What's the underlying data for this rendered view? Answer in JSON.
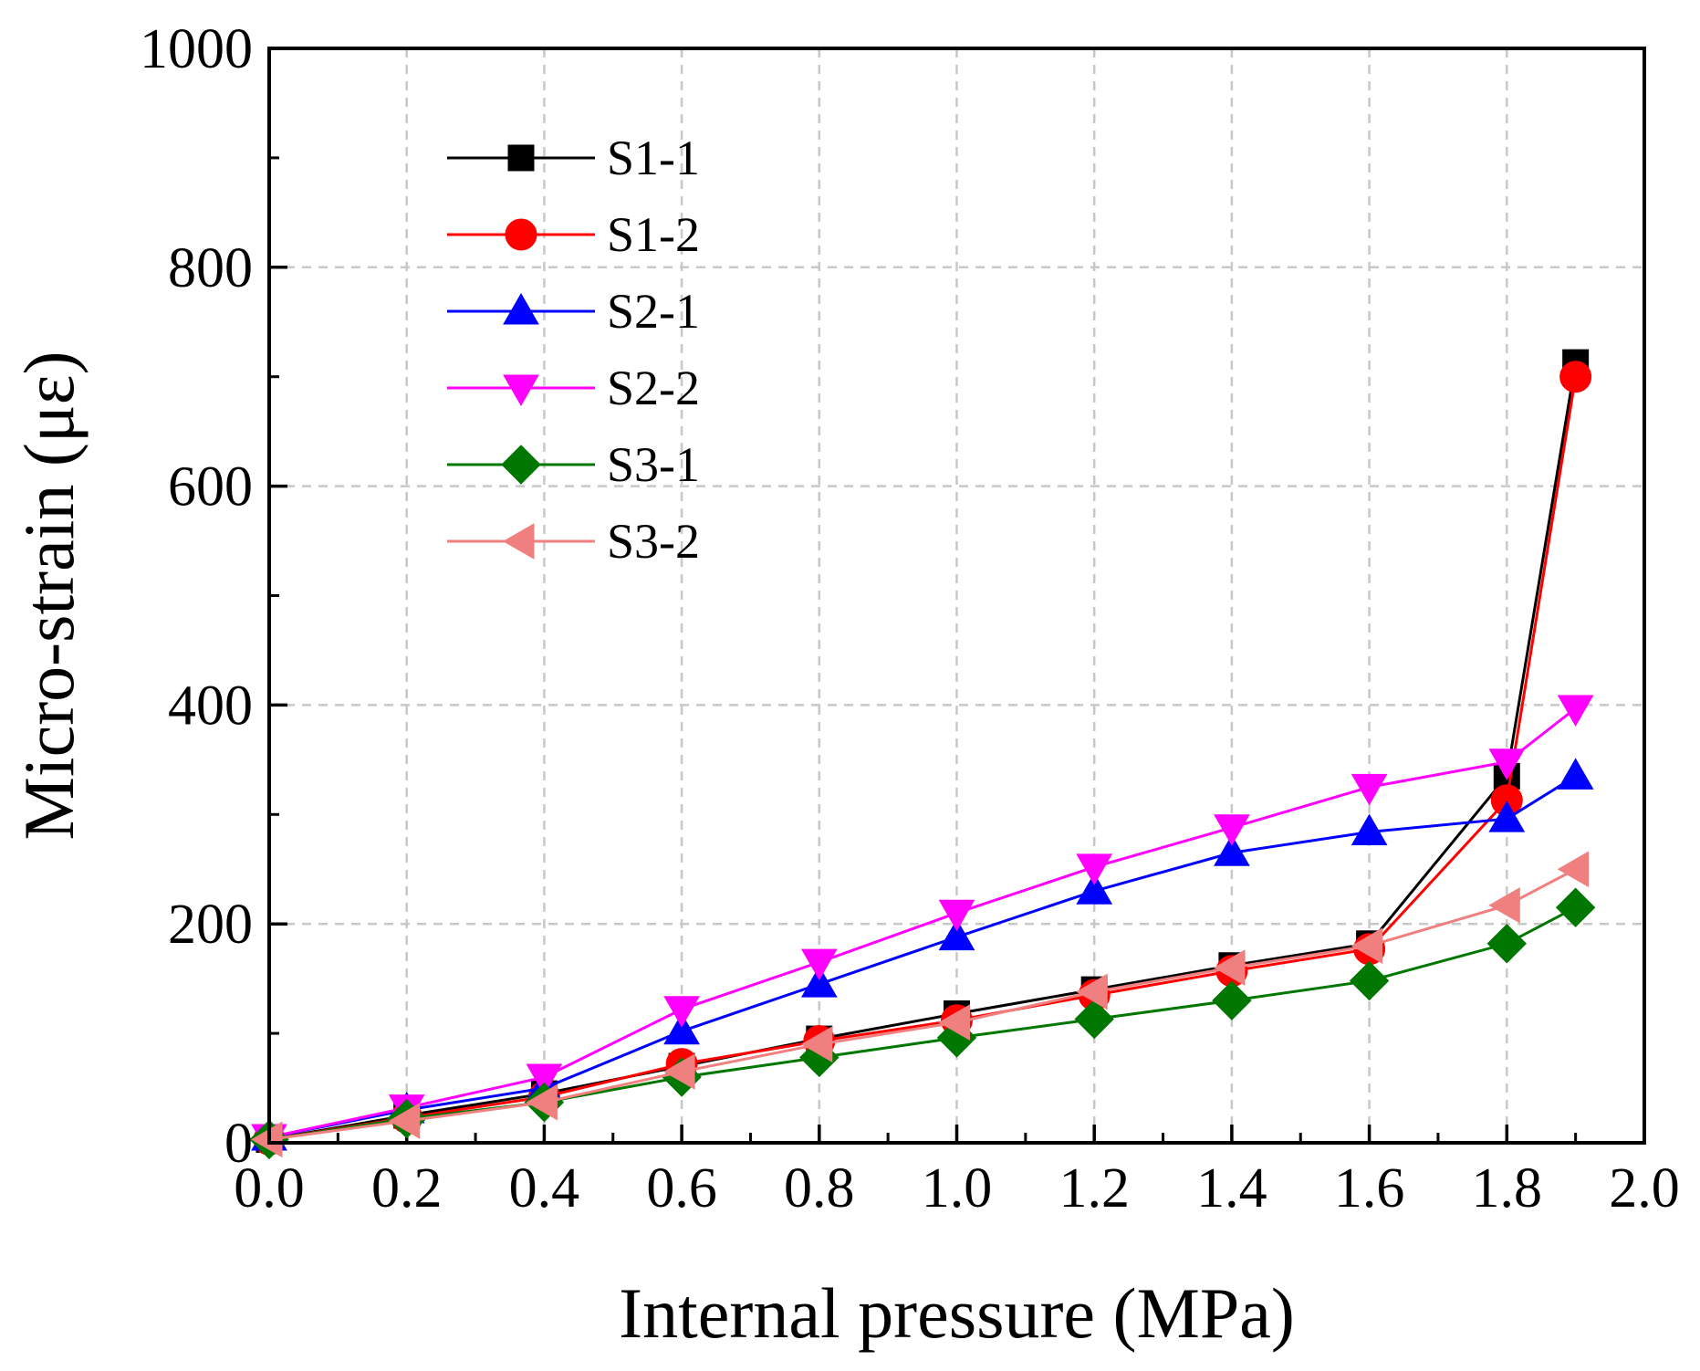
{
  "chart_data": {
    "type": "line",
    "title": "",
    "xlabel": "Internal pressure (MPa)",
    "ylabel": "Micro-strain (με)",
    "xlim": [
      0.0,
      2.0
    ],
    "ylim": [
      0,
      1000
    ],
    "x_ticks": [
      0.0,
      0.2,
      0.4,
      0.6,
      0.8,
      1.0,
      1.2,
      1.4,
      1.6,
      1.8,
      2.0
    ],
    "x_tick_labels": [
      "0.0",
      "0.2",
      "0.4",
      "0.6",
      "0.8",
      "1.0",
      "1.2",
      "1.4",
      "1.6",
      "1.8",
      "2.0"
    ],
    "y_ticks": [
      0,
      200,
      400,
      600,
      800,
      1000
    ],
    "y_tick_labels": [
      "0",
      "200",
      "400",
      "600",
      "800",
      "1000"
    ],
    "grid": true,
    "legend_position": "top-left",
    "x": [
      0.0,
      0.2,
      0.4,
      0.6,
      0.8,
      1.0,
      1.2,
      1.4,
      1.6,
      1.8,
      1.9
    ],
    "series": [
      {
        "name": "S1-1",
        "color": "#000000",
        "marker": "square",
        "values": [
          3,
          25,
          45,
          70,
          95,
          118,
          140,
          162,
          182,
          335,
          713
        ]
      },
      {
        "name": "S1-2",
        "color": "#ff0000",
        "marker": "circle",
        "values": [
          3,
          23,
          42,
          72,
          93,
          112,
          135,
          157,
          177,
          313,
          700
        ]
      },
      {
        "name": "S2-1",
        "color": "#0000ff",
        "marker": "triangle-up",
        "values": [
          5,
          30,
          50,
          102,
          145,
          188,
          230,
          265,
          284,
          296,
          335
        ]
      },
      {
        "name": "S2-2",
        "color": "#ff00ff",
        "marker": "triangle-down",
        "values": [
          5,
          32,
          60,
          122,
          165,
          210,
          252,
          288,
          325,
          348,
          397
        ]
      },
      {
        "name": "S3-1",
        "color": "#007700",
        "marker": "diamond",
        "values": [
          3,
          22,
          37,
          60,
          78,
          96,
          113,
          130,
          148,
          182,
          215
        ]
      },
      {
        "name": "S3-2",
        "color": "#f08080",
        "marker": "triangle-left",
        "values": [
          3,
          20,
          37,
          65,
          90,
          110,
          138,
          160,
          180,
          217,
          250
        ]
      }
    ]
  }
}
